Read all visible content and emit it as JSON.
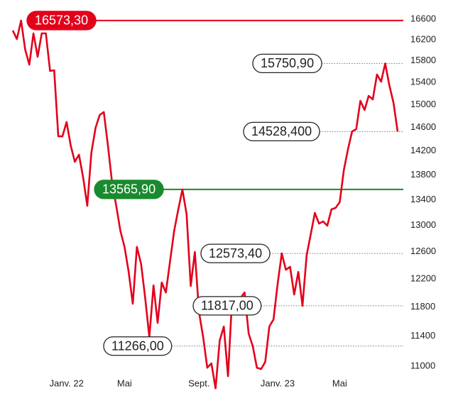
{
  "chart_data": {
    "type": "line",
    "log_y": true,
    "color": "#e3001b",
    "categories": [
      null,
      null,
      null,
      null,
      null,
      null,
      null,
      null,
      null,
      null,
      null,
      null,
      null,
      "Janv. 22",
      null,
      null,
      null,
      null,
      null,
      null,
      null,
      null,
      null,
      null,
      null,
      null,
      null,
      "Mai",
      null,
      null,
      null,
      null,
      null,
      null,
      null,
      null,
      null,
      null,
      null,
      null,
      null,
      null,
      null,
      null,
      null,
      "Sept.",
      null,
      null,
      null,
      null,
      null,
      null,
      null,
      null,
      null,
      null,
      null,
      null,
      null,
      null,
      null,
      null,
      null,
      null,
      "Janv. 23",
      null,
      null,
      null,
      null,
      null,
      null,
      null,
      null,
      null,
      null,
      null,
      null,
      null,
      null,
      "Mai",
      null,
      null,
      null,
      null,
      null,
      null,
      null,
      null,
      null,
      null,
      null,
      null,
      null,
      null
    ],
    "values": [
      16378,
      16213,
      16573.3,
      16011,
      15729,
      16323,
      15876,
      16323,
      16323,
      15611,
      15624,
      14447,
      14447,
      14693,
      14290,
      14017,
      14135,
      13759,
      13305,
      14171,
      14594,
      14817,
      14868,
      14290,
      13668,
      13305,
      12917,
      12671,
      12302,
      11846,
      12671,
      12417,
      11925,
      11386,
      12108,
      11579,
      12148,
      12005,
      12459,
      12917,
      13248,
      13565.9,
      13170,
      12098,
      12596,
      11727,
      11386,
      10981,
      11037,
      10716,
      11339,
      11530,
      10871,
      11925,
      11777,
      11925,
      12005,
      11434,
      11263,
      10981,
      10963,
      11056,
      11530,
      11628,
      12128,
      12573.4,
      12333,
      12375,
      11976,
      12302,
      11817,
      12543,
      12863,
      13193,
      13027,
      13060,
      12994,
      13248,
      13272,
      13361,
      13877,
      14231,
      14532,
      14570,
      15069,
      14905,
      15157,
      15094,
      15545,
      15414,
      15750.9,
      15349,
      15030,
      14528.4
    ],
    "ylim": [
      11000,
      16600
    ],
    "yticks": [
      11000,
      11400,
      11800,
      12200,
      12600,
      13000,
      13400,
      13800,
      14200,
      14600,
      15000,
      15400,
      15800,
      16200,
      16600
    ],
    "annotations": [
      {
        "value": 16573.3,
        "label": "16573,30",
        "color": "#e3001b",
        "line": "solid"
      },
      {
        "value": 15750.9,
        "label": "15750,90",
        "color": "#ffffff",
        "line": "dotted"
      },
      {
        "value": 14528.4,
        "label": "14528,400",
        "color": "#ffffff",
        "line": "dotted"
      },
      {
        "value": 13565.9,
        "label": "13565,90",
        "color": "#1a8a2e",
        "line": "solid"
      },
      {
        "value": 12573.4,
        "label": "12573,40",
        "color": "#ffffff",
        "line": "dotted"
      },
      {
        "value": 11817,
        "label": "11817,00",
        "color": "#ffffff",
        "line": "dotted"
      },
      {
        "value": 11266,
        "label": "11266,00",
        "color": "#ffffff",
        "line": "dotted"
      }
    ]
  }
}
